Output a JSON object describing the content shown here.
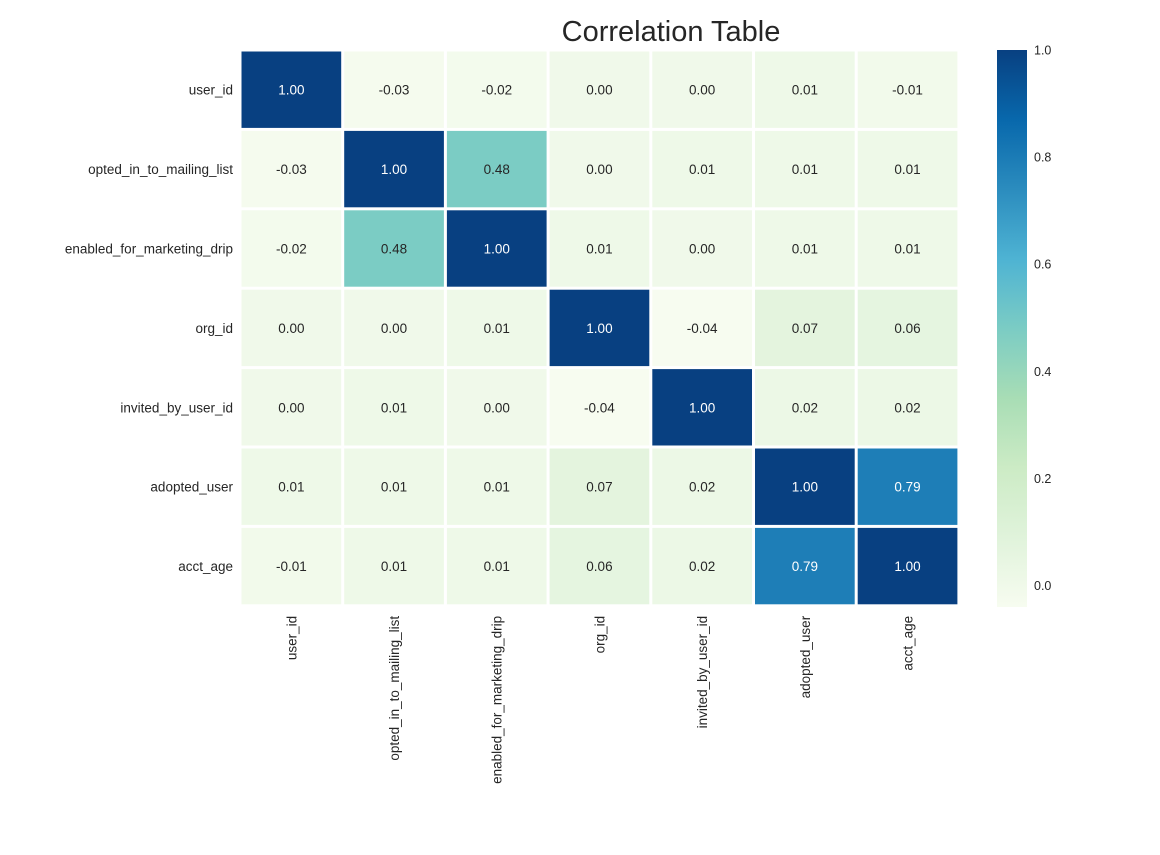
{
  "chart_data": {
    "type": "heatmap",
    "title": "Correlation Table",
    "rows": [
      "user_id",
      "opted_in_to_mailing_list",
      "enabled_for_marketing_drip",
      "org_id",
      "invited_by_user_id",
      "adopted_user",
      "acct_age"
    ],
    "columns": [
      "user_id",
      "opted_in_to_mailing_list",
      "enabled_for_marketing_drip",
      "org_id",
      "invited_by_user_id",
      "adopted_user",
      "acct_age"
    ],
    "values": [
      [
        1.0,
        -0.03,
        -0.02,
        0.0,
        0.0,
        0.01,
        -0.01
      ],
      [
        -0.03,
        1.0,
        0.48,
        0.0,
        0.01,
        0.01,
        0.01
      ],
      [
        -0.02,
        0.48,
        1.0,
        0.01,
        0.0,
        0.01,
        0.01
      ],
      [
        0.0,
        0.0,
        0.01,
        1.0,
        -0.04,
        0.07,
        0.06
      ],
      [
        0.0,
        0.01,
        0.0,
        -0.04,
        1.0,
        0.02,
        0.02
      ],
      [
        0.01,
        0.01,
        0.01,
        0.07,
        0.02,
        1.0,
        0.79
      ],
      [
        -0.01,
        0.01,
        0.01,
        0.06,
        0.02,
        0.79,
        1.0
      ]
    ],
    "value_format": "2 decimals",
    "colormap": "GnBu",
    "colormap_stops": [
      "#f7fcf0",
      "#e0f3db",
      "#ccebc5",
      "#a8ddb5",
      "#7bccc4",
      "#4eb3d3",
      "#2b8cbe",
      "#0868ac",
      "#084081"
    ],
    "color_range": [
      -0.04,
      1.0
    ],
    "colorbar": {
      "ticks": [
        0.0,
        0.2,
        0.4,
        0.6,
        0.8,
        1.0
      ],
      "tick_labels": [
        "0.0",
        "0.2",
        "0.4",
        "0.6",
        "0.8",
        "1.0"
      ]
    },
    "xlabel": "",
    "ylabel": "",
    "gridlines": "white cell separators",
    "colorbar_placement": "right",
    "x_tick_rotation": "vertical"
  }
}
